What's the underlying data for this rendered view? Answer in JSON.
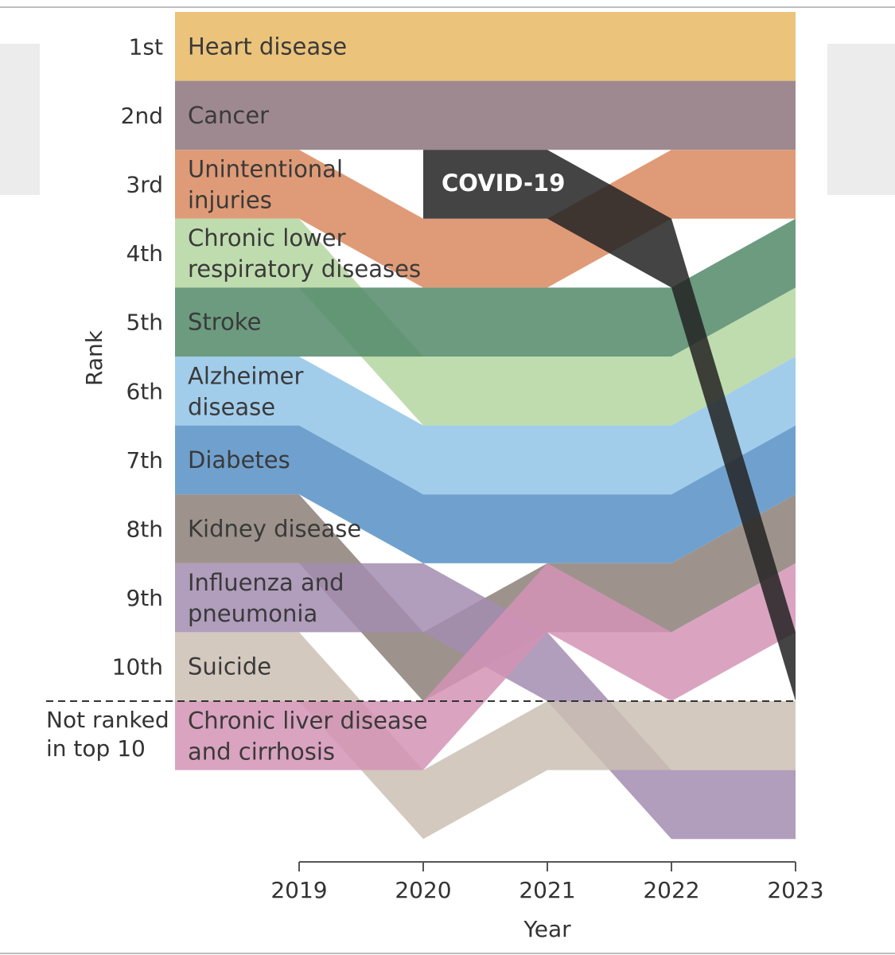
{
  "chart_data": {
    "type": "bump",
    "title": "",
    "xlabel": "Year",
    "ylabel": "Rank",
    "years": [
      "2019",
      "2020",
      "2021",
      "2022",
      "2023"
    ],
    "rank_labels": [
      "1st",
      "2nd",
      "3rd",
      "4th",
      "5th",
      "6th",
      "7th",
      "8th",
      "9th",
      "10th"
    ],
    "not_ranked_label": [
      "Not ranked",
      "in top 10"
    ],
    "series": [
      {
        "name": "Heart disease",
        "label": [
          "Heart disease"
        ],
        "ranks": [
          1,
          1,
          1,
          1,
          1
        ],
        "color": "#e8b864"
      },
      {
        "name": "Cancer",
        "label": [
          "Cancer"
        ],
        "ranks": [
          2,
          2,
          2,
          2,
          2
        ],
        "color": "#8c747b"
      },
      {
        "name": "Unintentional injuries",
        "label": [
          "Unintentional",
          "injuries"
        ],
        "ranks": [
          3,
          4,
          4,
          3,
          3
        ],
        "color": "#d9895f"
      },
      {
        "name": "Chronic lower respiratory diseases",
        "label": [
          "Chronic lower",
          "respiratory diseases"
        ],
        "ranks": [
          4,
          6,
          6,
          6,
          5
        ],
        "color": "#b4d6a0"
      },
      {
        "name": "Stroke",
        "label": [
          "Stroke"
        ],
        "ranks": [
          5,
          5,
          5,
          5,
          4
        ],
        "color": "#528a6a"
      },
      {
        "name": "Alzheimer disease",
        "label": [
          "Alzheimer",
          "disease"
        ],
        "ranks": [
          6,
          7,
          7,
          7,
          6
        ],
        "color": "#90c4e8"
      },
      {
        "name": "Diabetes",
        "label": [
          "Diabetes"
        ],
        "ranks": [
          7,
          8,
          8,
          8,
          7
        ],
        "color": "#5791c5"
      },
      {
        "name": "Kidney disease",
        "label": [
          "Kidney disease"
        ],
        "ranks": [
          8,
          10,
          9,
          9,
          8
        ],
        "color": "#8c8078"
      },
      {
        "name": "Influenza and pneumonia",
        "label": [
          "Influenza and",
          "pneumonia"
        ],
        "ranks": [
          9,
          9,
          10,
          12,
          12
        ],
        "color": "#a38cb0"
      },
      {
        "name": "Suicide",
        "label": [
          "Suicide"
        ],
        "ranks": [
          10,
          12,
          11,
          11,
          11
        ],
        "color": "#cbbfb3"
      },
      {
        "name": "Chronic liver disease and cirrhosis",
        "label": [
          "Chronic liver disease",
          "and cirrhosis"
        ],
        "ranks": [
          11,
          11,
          9,
          10,
          9
        ],
        "color": "#d493b5"
      }
    ],
    "covid": {
      "name": "COVID-19",
      "ranks": [
        null,
        3,
        3,
        4,
        10
      ],
      "color": "#232323"
    }
  }
}
